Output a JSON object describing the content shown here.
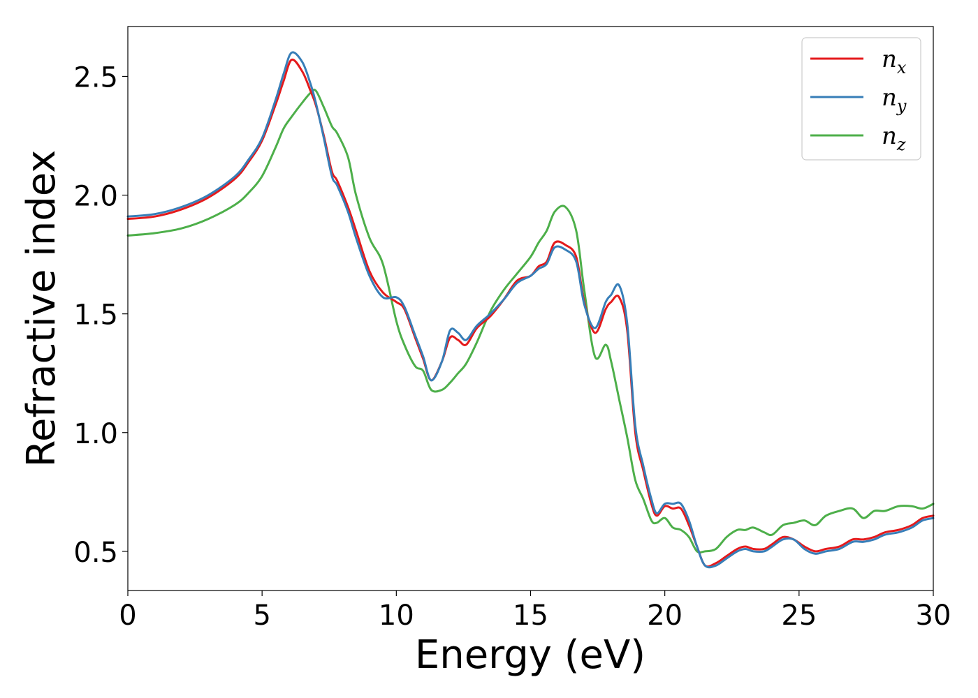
{
  "chart_data": {
    "type": "line",
    "xlabel": "Energy (eV)",
    "ylabel": "Refractive index",
    "xlim": [
      0,
      30
    ],
    "ylim": [
      0.335,
      2.71
    ],
    "xticks": [
      "0",
      "5",
      "10",
      "15",
      "20",
      "25",
      "30"
    ],
    "xtick_values": [
      0,
      5,
      10,
      15,
      20,
      25,
      30
    ],
    "yticks": [
      "0.5",
      "1.0",
      "1.5",
      "2.0",
      "2.5"
    ],
    "ytick_values": [
      0.5,
      1.0,
      1.5,
      2.0,
      2.5
    ],
    "grid": false,
    "legend_position": "top-right",
    "series": [
      {
        "name": "x",
        "base": "n",
        "color": "#e41a1c",
        "x": [
          0,
          1,
          2,
          3,
          4,
          4.5,
          5,
          5.5,
          5.8,
          6.1,
          6.5,
          6.8,
          7.0,
          7.3,
          7.6,
          7.8,
          8.2,
          8.5,
          9.0,
          9.5,
          10.0,
          10.3,
          10.7,
          11.0,
          11.3,
          11.7,
          12.0,
          12.3,
          12.6,
          13.0,
          13.5,
          14.0,
          14.5,
          15.0,
          15.3,
          15.6,
          15.9,
          16.3,
          16.7,
          17.0,
          17.4,
          17.8,
          18.0,
          18.3,
          18.6,
          18.9,
          19.2,
          19.5,
          19.7,
          20.0,
          20.3,
          20.6,
          20.9,
          21.2,
          21.5,
          21.9,
          22.3,
          22.7,
          23.0,
          23.3,
          23.7,
          24.0,
          24.4,
          24.8,
          25.2,
          25.6,
          26.0,
          26.5,
          27.0,
          27.4,
          27.8,
          28.2,
          28.7,
          29.2,
          29.6,
          30.0
        ],
        "y": [
          1.9,
          1.91,
          1.94,
          1.99,
          2.07,
          2.14,
          2.23,
          2.38,
          2.48,
          2.57,
          2.52,
          2.44,
          2.38,
          2.25,
          2.1,
          2.06,
          1.95,
          1.85,
          1.68,
          1.59,
          1.55,
          1.52,
          1.4,
          1.31,
          1.22,
          1.3,
          1.4,
          1.39,
          1.37,
          1.44,
          1.49,
          1.56,
          1.64,
          1.66,
          1.7,
          1.72,
          1.8,
          1.79,
          1.74,
          1.55,
          1.42,
          1.52,
          1.55,
          1.57,
          1.43,
          1.0,
          0.84,
          0.7,
          0.65,
          0.69,
          0.68,
          0.68,
          0.61,
          0.52,
          0.44,
          0.45,
          0.48,
          0.51,
          0.52,
          0.51,
          0.51,
          0.53,
          0.56,
          0.55,
          0.52,
          0.5,
          0.51,
          0.52,
          0.55,
          0.55,
          0.56,
          0.58,
          0.59,
          0.61,
          0.64,
          0.65
        ]
      },
      {
        "name": "y",
        "base": "n",
        "color": "#377eb8",
        "x": [
          0,
          1,
          2,
          3,
          4,
          4.5,
          5,
          5.5,
          5.8,
          6.1,
          6.5,
          6.8,
          7.0,
          7.3,
          7.6,
          7.8,
          8.2,
          8.5,
          9.0,
          9.5,
          10.0,
          10.3,
          10.7,
          11.0,
          11.3,
          11.7,
          12.0,
          12.3,
          12.6,
          13.0,
          13.5,
          14.0,
          14.5,
          15.0,
          15.3,
          15.6,
          15.9,
          16.3,
          16.7,
          17.0,
          17.4,
          17.8,
          18.0,
          18.3,
          18.6,
          18.9,
          19.2,
          19.5,
          19.7,
          20.0,
          20.3,
          20.6,
          20.9,
          21.2,
          21.5,
          21.9,
          22.3,
          22.7,
          23.0,
          23.3,
          23.7,
          24.0,
          24.4,
          24.8,
          25.2,
          25.6,
          26.0,
          26.5,
          27.0,
          27.4,
          27.8,
          28.2,
          28.7,
          29.2,
          29.6,
          30.0
        ],
        "y": [
          1.91,
          1.92,
          1.95,
          2.0,
          2.08,
          2.15,
          2.24,
          2.4,
          2.51,
          2.6,
          2.56,
          2.47,
          2.39,
          2.24,
          2.08,
          2.04,
          1.93,
          1.82,
          1.66,
          1.57,
          1.57,
          1.53,
          1.41,
          1.32,
          1.22,
          1.3,
          1.43,
          1.42,
          1.39,
          1.45,
          1.5,
          1.56,
          1.63,
          1.66,
          1.69,
          1.71,
          1.78,
          1.77,
          1.72,
          1.54,
          1.44,
          1.55,
          1.58,
          1.62,
          1.46,
          1.03,
          0.86,
          0.72,
          0.66,
          0.7,
          0.7,
          0.7,
          0.63,
          0.52,
          0.44,
          0.44,
          0.47,
          0.5,
          0.51,
          0.5,
          0.5,
          0.52,
          0.55,
          0.55,
          0.51,
          0.49,
          0.5,
          0.51,
          0.54,
          0.54,
          0.55,
          0.57,
          0.58,
          0.6,
          0.63,
          0.64
        ]
      },
      {
        "name": "z",
        "base": "n",
        "color": "#4daf4a",
        "x": [
          0,
          1,
          2,
          3,
          4,
          4.5,
          5,
          5.5,
          5.8,
          6.1,
          6.5,
          6.8,
          7.0,
          7.3,
          7.6,
          7.8,
          8.2,
          8.5,
          9.0,
          9.5,
          10.0,
          10.3,
          10.7,
          11.0,
          11.3,
          11.7,
          12.0,
          12.3,
          12.6,
          13.0,
          13.5,
          14.0,
          14.5,
          15.0,
          15.3,
          15.6,
          15.9,
          16.3,
          16.7,
          17.0,
          17.4,
          17.8,
          18.0,
          18.3,
          18.6,
          18.9,
          19.2,
          19.5,
          19.7,
          20.0,
          20.3,
          20.6,
          20.9,
          21.2,
          21.5,
          21.9,
          22.3,
          22.7,
          23.0,
          23.3,
          23.7,
          24.0,
          24.4,
          24.8,
          25.2,
          25.6,
          26.0,
          26.5,
          27.0,
          27.4,
          27.8,
          28.2,
          28.7,
          29.2,
          29.6,
          30.0
        ],
        "y": [
          1.83,
          1.84,
          1.86,
          1.9,
          1.96,
          2.01,
          2.08,
          2.2,
          2.28,
          2.33,
          2.39,
          2.43,
          2.44,
          2.37,
          2.29,
          2.26,
          2.16,
          2.0,
          1.82,
          1.71,
          1.47,
          1.37,
          1.28,
          1.26,
          1.18,
          1.18,
          1.21,
          1.25,
          1.29,
          1.38,
          1.51,
          1.6,
          1.67,
          1.74,
          1.8,
          1.85,
          1.93,
          1.95,
          1.85,
          1.6,
          1.32,
          1.37,
          1.3,
          1.14,
          0.98,
          0.8,
          0.72,
          0.63,
          0.62,
          0.64,
          0.6,
          0.59,
          0.56,
          0.5,
          0.5,
          0.51,
          0.56,
          0.59,
          0.59,
          0.6,
          0.58,
          0.57,
          0.61,
          0.62,
          0.63,
          0.61,
          0.65,
          0.67,
          0.68,
          0.64,
          0.67,
          0.67,
          0.69,
          0.69,
          0.68,
          0.7
        ]
      }
    ]
  }
}
